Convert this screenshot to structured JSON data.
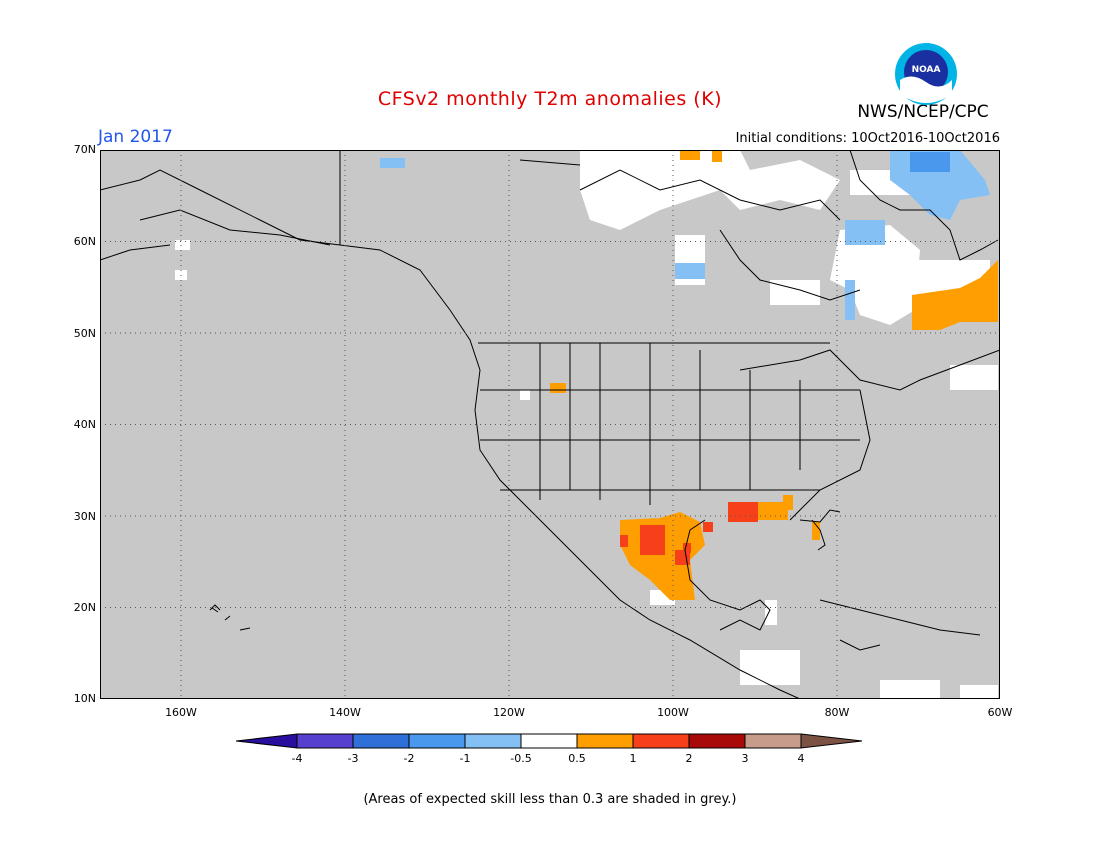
{
  "header": {
    "title": "CFSv2 monthly T2m anomalies (K)",
    "period": "Jan 2017",
    "initial_conditions": "Initial conditions: 10Oct2016-10Oct2016",
    "agency": "NWS/NCEP/CPC",
    "logo_text": "NOAA"
  },
  "map": {
    "lat_labels": [
      "70N",
      "60N",
      "50N",
      "40N",
      "30N",
      "20N",
      "10N"
    ],
    "lon_labels": [
      "160W",
      "140W",
      "120W",
      "100W",
      "80W",
      "60W"
    ],
    "background_color": "#c8c8c8",
    "land_outline_color": "#000000",
    "grid_style": "dotted"
  },
  "colorbar": {
    "labels": [
      "-4",
      "-3",
      "-2",
      "-1",
      "-0.5",
      "0.5",
      "1",
      "2",
      "3",
      "4"
    ],
    "colors": [
      "#2a0f9e",
      "#5540d0",
      "#2f6fd8",
      "#4a98ee",
      "#85c0f5",
      "#ffffff",
      "#ff9e00",
      "#f5401a",
      "#a80a0a",
      "#c89c8a",
      "#7b5244"
    ]
  },
  "footnote": "(Areas of expected skill less than 0.3 are shaded in grey.)"
}
